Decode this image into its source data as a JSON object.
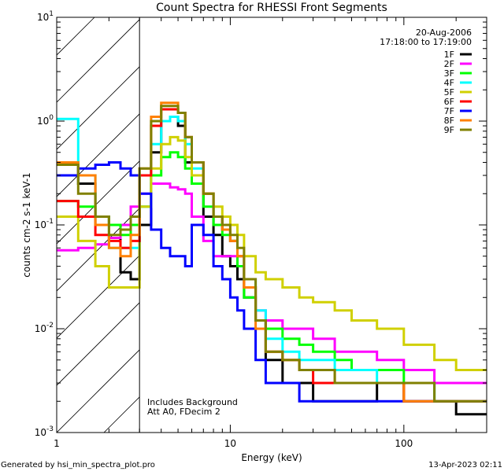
{
  "chart_data": {
    "type": "line",
    "title": "Count Spectra for RHESSI Front Segments",
    "xlabel": "Energy (keV)",
    "ylabel": "counts cm-2 s-1 keV-1",
    "ylabel_parts": {
      "base": "counts cm",
      "e1": "-2",
      "s": " s",
      "e2": "-1",
      "k": " keV",
      "e3": "-1"
    },
    "xscale": "log",
    "yscale": "log",
    "xlim": [
      1,
      300
    ],
    "ylim": [
      0.001,
      10
    ],
    "xticks": [
      {
        "value": 1,
        "label": "1"
      },
      {
        "value": 10,
        "label": "10"
      },
      {
        "value": 100,
        "label": "100"
      }
    ],
    "yticks": [
      {
        "value": 10,
        "base": "10",
        "exp": "1"
      },
      {
        "value": 1,
        "base": "10",
        "exp": "0"
      },
      {
        "value": 0.1,
        "base": "10",
        "exp": "-1"
      },
      {
        "value": 0.01,
        "base": "10",
        "exp": "-2"
      },
      {
        "value": 0.001,
        "base": "10",
        "exp": "-3"
      }
    ],
    "legend_position": "top-right",
    "date": "20-Aug-2006",
    "time_range": "17:18:00 to 17:19:00",
    "shaded_region_keV": [
      1,
      3
    ],
    "annotations": [
      "Includes Background",
      "Att A0, FDecim 2"
    ],
    "bin_edges": [
      1,
      1.33,
      1.67,
      2,
      2.33,
      2.67,
      3,
      3.5,
      4,
      4.5,
      5,
      5.5,
      6,
      7,
      8,
      9,
      10,
      11,
      12,
      14,
      16,
      20,
      25,
      30,
      40,
      50,
      70,
      100,
      150,
      200,
      300
    ],
    "series": [
      {
        "name": "1F",
        "color": "#000000",
        "values": [
          0.4,
          0.25,
          0.12,
          0.1,
          0.035,
          0.03,
          0.1,
          0.5,
          1.0,
          1.1,
          0.9,
          0.4,
          0.25,
          0.12,
          0.08,
          0.05,
          0.04,
          0.03,
          0.02,
          0.012,
          0.005,
          0.003,
          0.003,
          0.002,
          0.002,
          0.002,
          0.003,
          0.002,
          0.002,
          0.0015
        ]
      },
      {
        "name": "2F",
        "color": "#ff00ff",
        "values": [
          0.057,
          0.06,
          0.065,
          0.075,
          0.1,
          0.15,
          0.2,
          0.25,
          0.25,
          0.23,
          0.22,
          0.2,
          0.12,
          0.07,
          0.05,
          0.05,
          0.05,
          0.04,
          0.025,
          0.015,
          0.012,
          0.01,
          0.01,
          0.008,
          0.006,
          0.006,
          0.005,
          0.004,
          0.003,
          0.003
        ]
      },
      {
        "name": "3F",
        "color": "#00ff00",
        "values": [
          0.17,
          0.15,
          0.12,
          0.1,
          0.08,
          0.1,
          0.15,
          0.3,
          0.45,
          0.5,
          0.45,
          0.35,
          0.25,
          0.15,
          0.1,
          0.08,
          0.07,
          0.04,
          0.02,
          0.012,
          0.01,
          0.008,
          0.007,
          0.006,
          0.005,
          0.004,
          0.004,
          0.003,
          0.002,
          0.002
        ]
      },
      {
        "name": "4F",
        "color": "#00ffff",
        "values": [
          1.05,
          0.3,
          0.1,
          0.06,
          0.06,
          0.06,
          0.15,
          0.6,
          1.0,
          1.1,
          1.0,
          0.6,
          0.35,
          0.2,
          0.12,
          0.09,
          0.07,
          0.05,
          0.03,
          0.015,
          0.008,
          0.006,
          0.005,
          0.005,
          0.004,
          0.004,
          0.003,
          0.003,
          0.002,
          0.002
        ]
      },
      {
        "name": "5F",
        "color": "#d0d000",
        "values": [
          0.12,
          0.07,
          0.04,
          0.025,
          0.025,
          0.025,
          0.15,
          0.35,
          0.6,
          0.7,
          0.65,
          0.45,
          0.3,
          0.2,
          0.15,
          0.12,
          0.1,
          0.08,
          0.05,
          0.035,
          0.03,
          0.025,
          0.02,
          0.018,
          0.015,
          0.012,
          0.01,
          0.007,
          0.005,
          0.004
        ]
      },
      {
        "name": "6F",
        "color": "#ff0000",
        "values": [
          0.17,
          0.12,
          0.08,
          0.07,
          0.06,
          0.07,
          0.3,
          0.9,
          1.3,
          1.3,
          1.2,
          0.7,
          0.4,
          0.2,
          0.12,
          0.09,
          0.07,
          0.05,
          0.025,
          0.012,
          0.006,
          0.005,
          0.004,
          0.003,
          0.003,
          0.003,
          0.003,
          0.002,
          0.002,
          0.002
        ]
      },
      {
        "name": "7F",
        "color": "#0000ff",
        "values": [
          0.3,
          0.35,
          0.38,
          0.4,
          0.35,
          0.3,
          0.2,
          0.09,
          0.06,
          0.05,
          0.05,
          0.04,
          0.1,
          0.08,
          0.04,
          0.03,
          0.02,
          0.015,
          0.01,
          0.005,
          0.003,
          0.003,
          0.002,
          0.002,
          0.002,
          0.002,
          0.002,
          0.002,
          0.002,
          0.002
        ]
      },
      {
        "name": "8F",
        "color": "#ff8000",
        "values": [
          0.4,
          0.3,
          0.1,
          0.06,
          0.05,
          0.08,
          0.35,
          1.1,
          1.5,
          1.5,
          1.2,
          0.7,
          0.4,
          0.2,
          0.12,
          0.09,
          0.07,
          0.05,
          0.025,
          0.01,
          0.006,
          0.005,
          0.004,
          0.004,
          0.003,
          0.003,
          0.003,
          0.002,
          0.002,
          0.002
        ]
      },
      {
        "name": "9F",
        "color": "#808000",
        "values": [
          0.38,
          0.2,
          0.12,
          0.08,
          0.09,
          0.12,
          0.35,
          1.0,
          1.4,
          1.4,
          1.2,
          0.7,
          0.4,
          0.2,
          0.12,
          0.1,
          0.08,
          0.06,
          0.03,
          0.012,
          0.006,
          0.005,
          0.004,
          0.004,
          0.003,
          0.003,
          0.003,
          0.003,
          0.002,
          0.002
        ]
      }
    ]
  },
  "footer": {
    "generated_by": "Generated by hsi_min_spectra_plot.pro",
    "timestamp": "13-Apr-2023 02:11"
  }
}
